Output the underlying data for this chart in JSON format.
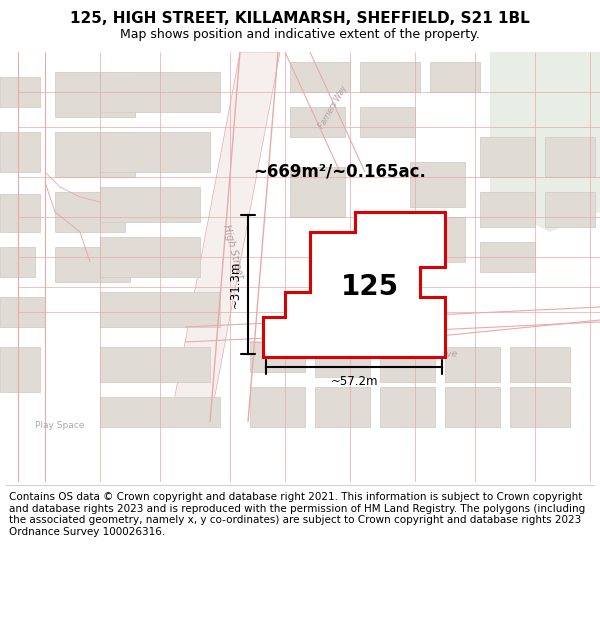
{
  "title": "125, HIGH STREET, KILLAMARSH, SHEFFIELD, S21 1BL",
  "subtitle": "Map shows position and indicative extent of the property.",
  "footer": "Contains OS data © Crown copyright and database right 2021. This information is subject to Crown copyright and database rights 2023 and is reproduced with the permission of HM Land Registry. The polygons (including the associated geometry, namely x, y co-ordinates) are subject to Crown copyright and database rights 2023 Ordnance Survey 100026316.",
  "area_label": "~669m²/~0.165ac.",
  "number_label": "125",
  "dim_width": "~57.2m",
  "dim_height": "~31.3m",
  "map_bg": "#f7f4f1",
  "building_fc": "#e0dbd5",
  "building_ec": "#d4cec8",
  "road_line": "#e8aaaa",
  "highlight_fill": "#ffffff",
  "highlight_stroke": "#dd0000",
  "green_area": "#e8ede5",
  "dim_color": "#000000",
  "title_fontsize": 11,
  "subtitle_fontsize": 9,
  "footer_fontsize": 7.5
}
